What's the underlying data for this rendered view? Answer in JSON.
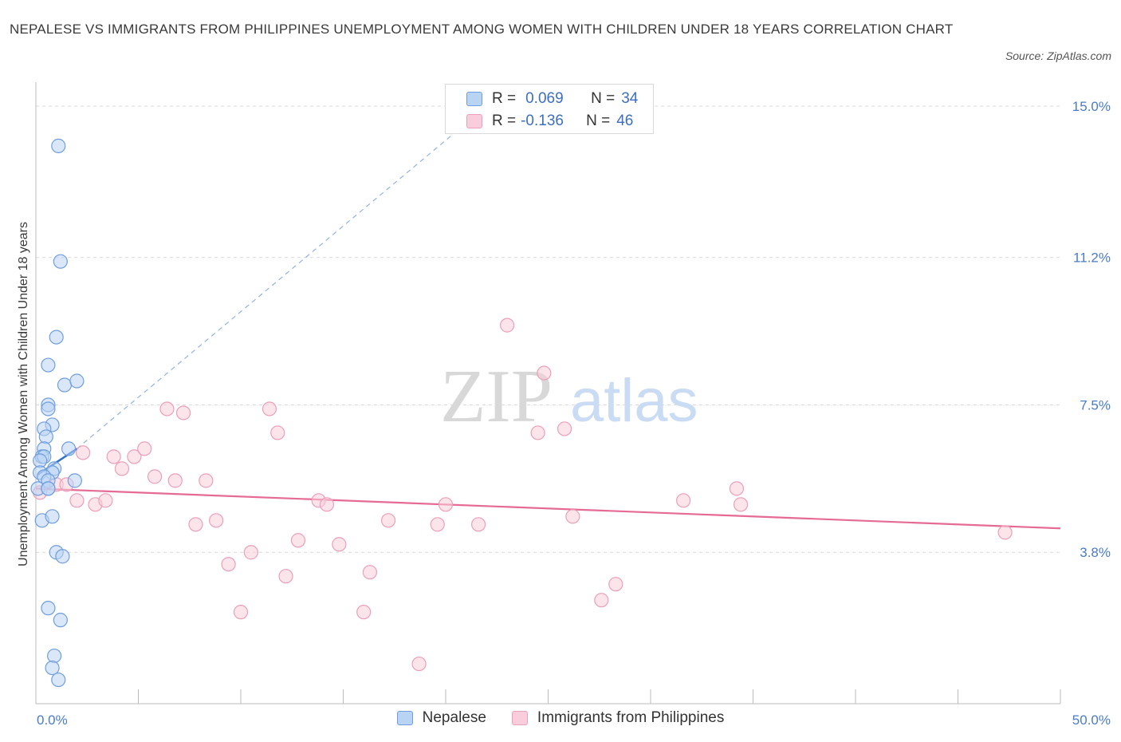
{
  "header": {
    "title": "NEPALESE VS IMMIGRANTS FROM PHILIPPINES UNEMPLOYMENT AMONG WOMEN WITH CHILDREN UNDER 18 YEARS CORRELATION CHART",
    "source": "Source: ZipAtlas.com"
  },
  "watermark": {
    "zip": "ZIP",
    "atlas": "atlas"
  },
  "legend": {
    "rows": [
      {
        "r_label": "R =",
        "r_value": "0.069",
        "n_label": "N =",
        "n_value": "34"
      },
      {
        "r_label": "R =",
        "r_value": "-0.136",
        "n_label": "N =",
        "n_value": "46"
      }
    ]
  },
  "bottom_legend": {
    "nepalese": "Nepalese",
    "philippines": "Immigrants from Philippines"
  },
  "colors": {
    "nepalese_fill": "#b9d3f3",
    "nepalese_stroke": "#6f9ee0",
    "nepalese_line": "#2f6fd1",
    "philippines_fill": "#f9cddb",
    "philippines_stroke": "#ec9fb8",
    "philippines_line": "#e56a94",
    "tick_text": "#4a7cc7",
    "grid": "#d9d9d9"
  },
  "chart_data": {
    "type": "scatter",
    "title": "NEPALESE VS IMMIGRANTS FROM PHILIPPINES UNEMPLOYMENT AMONG WOMEN WITH CHILDREN UNDER 18 YEARS CORRELATION CHART",
    "xlabel": "",
    "ylabel": "Unemployment Among Women with Children Under 18 years",
    "xlim": [
      0,
      50
    ],
    "ylim": [
      0,
      15.6
    ],
    "x_tick_labels": [
      "0.0%",
      "50.0%"
    ],
    "y_ticks": [
      3.8,
      7.5,
      11.2,
      15.0
    ],
    "y_tick_labels": [
      "3.8%",
      "7.5%",
      "11.2%",
      "15.0%"
    ],
    "grid": true,
    "legend_position": "top-center",
    "series": [
      {
        "name": "Nepalese",
        "R": 0.069,
        "N": 34,
        "points": [
          [
            1.1,
            14.0
          ],
          [
            1.2,
            11.1
          ],
          [
            1.0,
            9.2
          ],
          [
            0.6,
            8.5
          ],
          [
            1.4,
            8.0
          ],
          [
            2.0,
            8.1
          ],
          [
            0.6,
            7.5
          ],
          [
            0.6,
            7.4
          ],
          [
            0.8,
            7.0
          ],
          [
            0.4,
            6.9
          ],
          [
            0.5,
            6.7
          ],
          [
            0.4,
            6.4
          ],
          [
            1.6,
            6.4
          ],
          [
            0.3,
            6.2
          ],
          [
            0.4,
            6.2
          ],
          [
            0.2,
            6.1
          ],
          [
            0.9,
            5.9
          ],
          [
            0.8,
            5.8
          ],
          [
            0.2,
            5.8
          ],
          [
            0.4,
            5.7
          ],
          [
            0.6,
            5.6
          ],
          [
            0.1,
            5.4
          ],
          [
            1.9,
            5.6
          ],
          [
            0.6,
            5.4
          ],
          [
            0.6,
            5.4
          ],
          [
            0.3,
            4.6
          ],
          [
            0.8,
            4.7
          ],
          [
            1.0,
            3.8
          ],
          [
            1.3,
            3.7
          ],
          [
            0.6,
            2.4
          ],
          [
            1.2,
            2.1
          ],
          [
            0.9,
            1.2
          ],
          [
            0.8,
            0.9
          ],
          [
            1.1,
            0.6
          ]
        ],
        "trend_solid": [
          [
            0.1,
            5.75
          ],
          [
            2.0,
            6.4
          ]
        ],
        "trend_dashed": [
          [
            2.0,
            6.4
          ],
          [
            22.0,
            15.0
          ]
        ]
      },
      {
        "name": "Immigrants from Philippines",
        "R": -0.136,
        "N": 46,
        "points": [
          [
            0.2,
            5.3
          ],
          [
            1.0,
            5.5
          ],
          [
            1.5,
            5.5
          ],
          [
            2.3,
            6.3
          ],
          [
            2.9,
            5.0
          ],
          [
            2.0,
            5.1
          ],
          [
            3.4,
            5.1
          ],
          [
            3.8,
            6.2
          ],
          [
            4.2,
            5.9
          ],
          [
            4.8,
            6.2
          ],
          [
            5.3,
            6.4
          ],
          [
            5.8,
            5.7
          ],
          [
            6.4,
            7.4
          ],
          [
            6.8,
            5.6
          ],
          [
            7.2,
            7.3
          ],
          [
            7.8,
            4.5
          ],
          [
            8.3,
            5.6
          ],
          [
            8.8,
            4.6
          ],
          [
            9.4,
            3.5
          ],
          [
            10.0,
            2.3
          ],
          [
            10.5,
            3.8
          ],
          [
            11.4,
            7.4
          ],
          [
            11.8,
            6.8
          ],
          [
            12.2,
            3.2
          ],
          [
            12.8,
            4.1
          ],
          [
            13.8,
            5.1
          ],
          [
            14.2,
            5.0
          ],
          [
            14.8,
            4.0
          ],
          [
            16.0,
            2.3
          ],
          [
            16.3,
            3.3
          ],
          [
            17.2,
            4.6
          ],
          [
            18.7,
            1.0
          ],
          [
            19.6,
            4.5
          ],
          [
            20.0,
            5.0
          ],
          [
            21.6,
            4.5
          ],
          [
            23.0,
            9.5
          ],
          [
            24.5,
            6.8
          ],
          [
            24.8,
            8.3
          ],
          [
            25.8,
            6.9
          ],
          [
            26.2,
            4.7
          ],
          [
            27.6,
            2.6
          ],
          [
            28.3,
            3.0
          ],
          [
            31.6,
            5.1
          ],
          [
            34.2,
            5.4
          ],
          [
            34.4,
            5.0
          ],
          [
            47.3,
            4.3
          ]
        ],
        "trend_solid": [
          [
            0.0,
            5.4
          ],
          [
            50.0,
            4.4
          ]
        ]
      }
    ]
  }
}
